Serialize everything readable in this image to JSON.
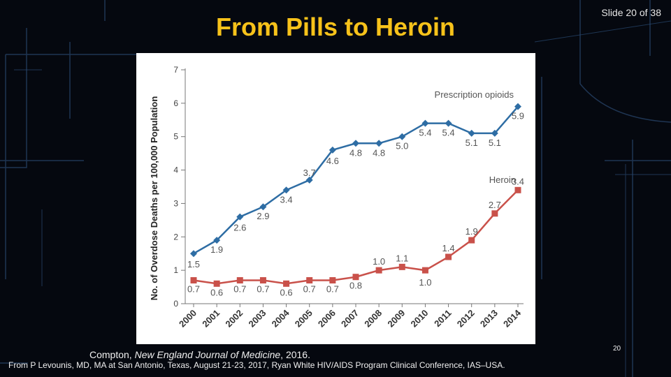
{
  "slide": {
    "title": "From Pills to Heroin",
    "slide_number": "Slide 20 of 38",
    "page_number": "20",
    "citation_prefix": "Compton, ",
    "citation_journal": "New England Journal of Medicine",
    "citation_suffix": ", 2016.",
    "source": "From P Levounis, MD, MA at San Antonio, Texas, August 21-23, 2017, Ryan White HIV/AIDS Program Clinical Conference, IAS–USA."
  },
  "colors": {
    "title": "#f7c21a",
    "prescription": "#2e6da4",
    "heroin": "#c9514a"
  },
  "chart_data": {
    "type": "line",
    "title": "",
    "xlabel": "",
    "ylabel": "No. of Overdose Deaths per 100,000 Population",
    "ylim": [
      0,
      7
    ],
    "yticks": [
      "0",
      "1",
      "2",
      "3",
      "4",
      "5",
      "6",
      "7"
    ],
    "categories": [
      "2000",
      "2001",
      "2002",
      "2003",
      "2004",
      "2005",
      "2006",
      "2007",
      "2008",
      "2009",
      "2010",
      "2011",
      "2012",
      "2013",
      "2014"
    ],
    "series": [
      {
        "name": "Prescription opioids",
        "values": [
          1.5,
          1.9,
          2.6,
          2.9,
          3.4,
          3.7,
          4.6,
          4.8,
          4.8,
          5.0,
          5.4,
          5.4,
          5.1,
          5.1,
          5.9
        ],
        "labels": [
          "1.5",
          "1.9",
          "2.6",
          "2.9",
          "3.4",
          "3.7",
          "4.6",
          "4.8",
          "4.8",
          "5.0",
          "5.4",
          "5.4",
          "5.1",
          "5.1",
          "5.9"
        ]
      },
      {
        "name": "Heroin",
        "values": [
          0.7,
          0.6,
          0.7,
          0.7,
          0.6,
          0.7,
          0.7,
          0.8,
          1.0,
          1.1,
          1.0,
          1.4,
          1.9,
          2.7,
          3.4
        ],
        "labels": [
          "0.7",
          "0.6",
          "0.7",
          "0.7",
          "0.6",
          "0.7",
          "0.7",
          "0.8",
          "1.0",
          "1.1",
          "1.0",
          "1.4",
          "1.9",
          "2.7",
          "3.4"
        ]
      }
    ]
  }
}
